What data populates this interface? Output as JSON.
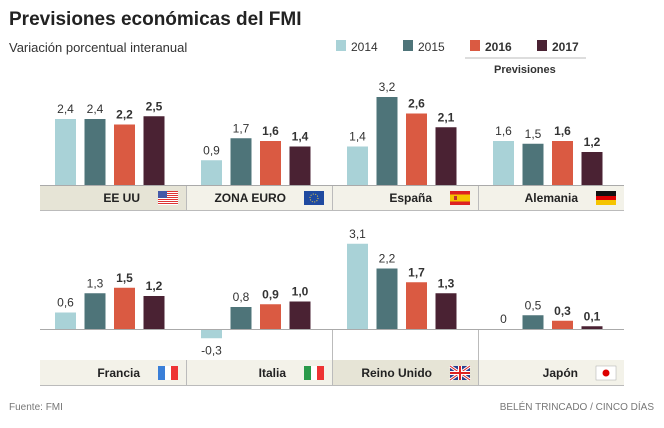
{
  "chart_data": {
    "type": "bar",
    "title": "Previsiones económicas del FMI",
    "subtitle": "Variación porcentual interanual",
    "legend": {
      "placement": "top-right",
      "group_label": "Previsiones",
      "group_label_covers": [
        "2016",
        "2017"
      ]
    },
    "series": [
      {
        "name": "2014",
        "color": "#a9d2d7",
        "bold": false
      },
      {
        "name": "2015",
        "color": "#4e7479",
        "bold": false
      },
      {
        "name": "2016",
        "color": "#da5a42",
        "bold": true
      },
      {
        "name": "2017",
        "color": "#4a2233",
        "bold": true
      }
    ],
    "panels": [
      {
        "categories": [
          {
            "name": "EE UU",
            "flag": "usa-flag",
            "values": [
              2.4,
              2.4,
              2.2,
              2.5
            ],
            "labels": [
              "2,4",
              "2,4",
              "2,2",
              "2,5"
            ]
          },
          {
            "name": "ZONA EURO",
            "flag": "eu-flag",
            "values": [
              0.9,
              1.7,
              1.6,
              1.4
            ],
            "labels": [
              "0,9",
              "1,7",
              "1,6",
              "1,4"
            ]
          },
          {
            "name": "España",
            "flag": "spain-flag",
            "values": [
              1.4,
              3.2,
              2.6,
              2.1
            ],
            "labels": [
              "1,4",
              "3,2",
              "2,6",
              "2,1"
            ]
          },
          {
            "name": "Alemania",
            "flag": "germany-flag",
            "values": [
              1.6,
              1.5,
              1.6,
              1.2
            ],
            "labels": [
              "1,6",
              "1,5",
              "1,6",
              "1,2"
            ]
          }
        ]
      },
      {
        "categories": [
          {
            "name": "Francia",
            "flag": "france-flag",
            "values": [
              0.6,
              1.3,
              1.5,
              1.2
            ],
            "labels": [
              "0,6",
              "1,3",
              "1,5",
              "1,2"
            ]
          },
          {
            "name": "Italia",
            "flag": "italy-flag",
            "values": [
              -0.3,
              0.8,
              0.9,
              1.0
            ],
            "labels": [
              "-0,3",
              "0,8",
              "0,9",
              "1,0"
            ]
          },
          {
            "name": "Reino Unido",
            "flag": "uk-flag",
            "values": [
              3.1,
              2.2,
              1.7,
              1.3
            ],
            "labels": [
              "3,1",
              "2,2",
              "1,7",
              "1,3"
            ]
          },
          {
            "name": "Japón",
            "flag": "japan-flag",
            "values": [
              0,
              0.5,
              0.3,
              0.1
            ],
            "labels": [
              "0",
              "0,5",
              "0,3",
              "0,1"
            ]
          }
        ]
      }
    ],
    "source": "Fuente: FMI",
    "credit": "BELÉN TRINCADO / CINCO DÍAS"
  }
}
